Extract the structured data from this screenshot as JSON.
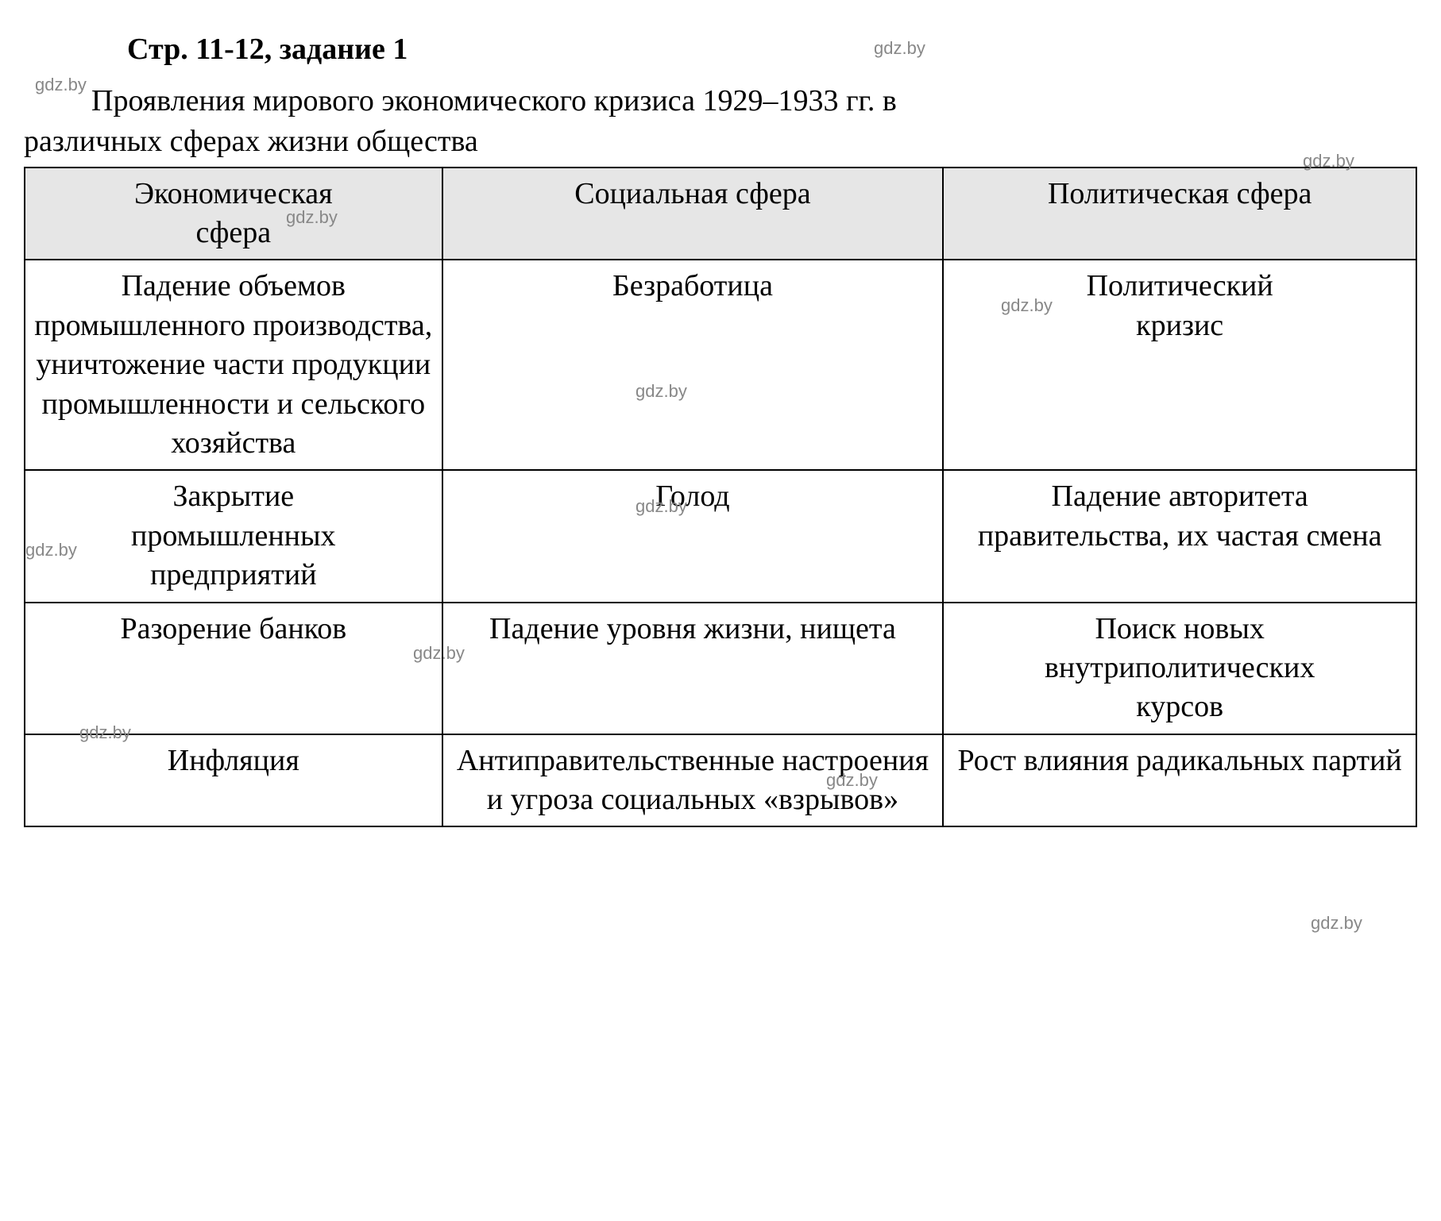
{
  "heading": "Стр. 11-12, задание 1",
  "intro_line1": "Проявления мирового экономического кризиса 1929–1933 гг. в",
  "intro_line2": "различных сферах жизни общества",
  "watermark": "gdz.by",
  "table": {
    "headers": {
      "col1_line1": "Экономическая",
      "col1_line2": "сфера",
      "col2": "Социальная сфера",
      "col3": "Политическая сфера"
    },
    "rows": [
      {
        "col1": "Падение объемов промышленного производства, уничтожение части продукции промышленности и сельского хозяйства",
        "col2": "Безработица",
        "col3_line1": "Политический",
        "col3_line2": "кризис"
      },
      {
        "col1_line1": "Закрытие",
        "col1_line2": "промышленных",
        "col1_line3": "предприятий",
        "col2": "Голод",
        "col3": "Падение авторитета правительства, их частая смена"
      },
      {
        "col1": "Разорение банков",
        "col2": "Падение уровня жизни, нищета",
        "col3_line1": "Поиск новых",
        "col3_line2": "внутриполитических",
        "col3_line3": "курсов"
      },
      {
        "col1": "Инфляция",
        "col2": "Антиправительственные настроения и угроза социальных «взрывов»",
        "col3": "Рост влияния радикальных партий"
      }
    ]
  },
  "styling": {
    "background_color": "#ffffff",
    "text_color": "#000000",
    "header_bg_color": "#e6e6e6",
    "border_color": "#000000",
    "watermark_color": "#888888",
    "font_family": "Times New Roman",
    "heading_fontsize": 38,
    "body_fontsize": 38,
    "watermark_fontsize": 22,
    "border_width": 2
  }
}
